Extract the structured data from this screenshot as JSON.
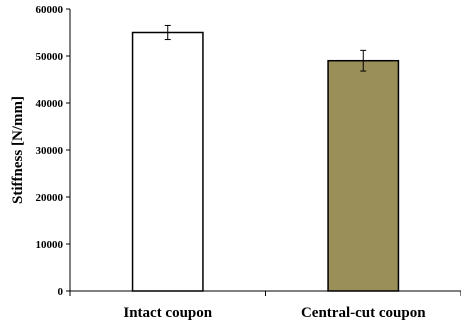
{
  "chart_data": {
    "type": "bar",
    "title": "",
    "xlabel": "",
    "ylabel": "Stiffness [N/mm]",
    "ylim": [
      0,
      60000
    ],
    "yticks": [
      0,
      10000,
      20000,
      30000,
      40000,
      50000,
      60000
    ],
    "grid": false,
    "legend": "none",
    "categories": [
      "Intact coupon",
      "Central-cut coupon"
    ],
    "values": [
      55000,
      49000
    ],
    "error": [
      1500,
      2200
    ],
    "bar_colors": [
      "#ffffff",
      "#9a8f58"
    ],
    "edge_color": "#000000"
  }
}
